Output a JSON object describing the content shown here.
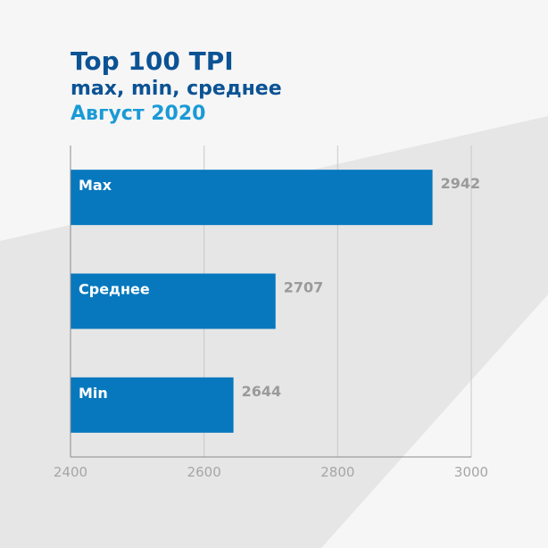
{
  "colors": {
    "background_light": "#f6f6f6",
    "background_dark": "#e6e6e6",
    "title": "#0b5394",
    "period": "#1a9ad6",
    "bar": "#0778be",
    "gridline": "#c8c8c8",
    "axis": "#8c8c8c"
  },
  "header": {
    "title": "Top 100 TPI",
    "subtitle": "max, min, среднее",
    "period": "Август 2020"
  },
  "chart_data": {
    "type": "bar",
    "orientation": "horizontal",
    "title": "Top 100 TPI",
    "subtitle": "max, min, среднее",
    "categories": [
      "Max",
      "Среднее",
      "Min"
    ],
    "values": [
      2942,
      2707,
      2644
    ],
    "xlabel": "",
    "ylabel": "",
    "xlim": [
      2400,
      3000
    ],
    "xticks": [
      2400,
      2600,
      2800,
      3000
    ],
    "grid": true,
    "legend": "none"
  }
}
